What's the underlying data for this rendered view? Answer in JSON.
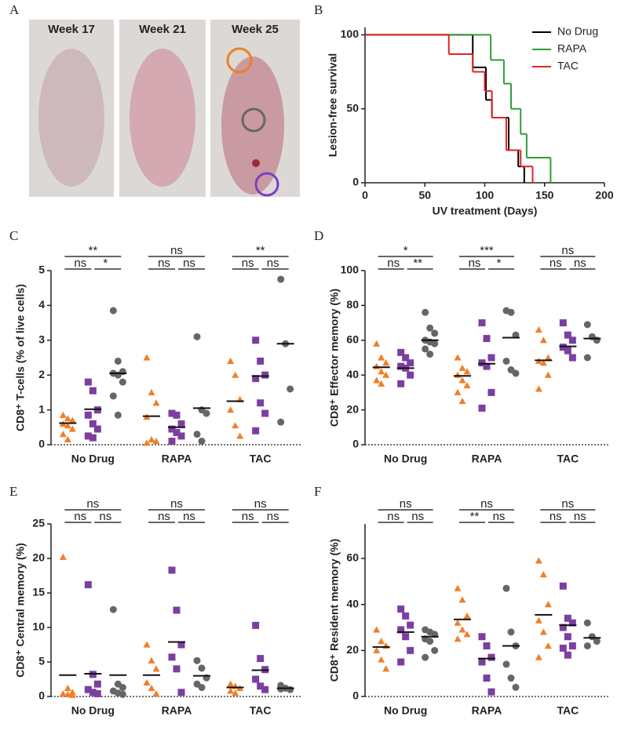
{
  "panel_a": {
    "label": "A",
    "captions": [
      "Week 17",
      "Week 21",
      "Week 25"
    ]
  },
  "chart_data": [
    {
      "type": "step",
      "label": "B",
      "xlabel": "UV treatment  (Days)",
      "ylabel": "Lesion-free survival",
      "xlim": [
        0,
        200
      ],
      "xticks": [
        0,
        50,
        100,
        150,
        200
      ],
      "ylim": [
        0,
        105
      ],
      "yticks": [
        0,
        50,
        100
      ],
      "legend": "upper right",
      "series": [
        {
          "name": "No Drug",
          "color": "#000000",
          "x": [
            0,
            90,
            101,
            106,
            120,
            128,
            133
          ],
          "values": [
            100,
            78,
            56,
            44,
            22,
            11,
            0
          ]
        },
        {
          "name": "RAPA",
          "color": "#2e9e3a",
          "x": [
            0,
            105,
            116,
            122,
            130,
            135,
            155
          ],
          "values": [
            100,
            83,
            67,
            50,
            33,
            17,
            0
          ]
        },
        {
          "name": "TAC",
          "color": "#e02424",
          "x": [
            0,
            70,
            90,
            100,
            106,
            118,
            130,
            140
          ],
          "values": [
            100,
            87,
            75,
            62,
            44,
            22,
            11,
            0
          ]
        }
      ]
    },
    {
      "type": "dot",
      "label": "C",
      "ylabel": "CD8⁺ T-cells (% of live cells)",
      "ylim": [
        0,
        5
      ],
      "yticks": [
        0,
        1,
        2,
        3,
        4,
        5
      ],
      "categories": [
        "No Drug",
        "RAPA",
        "TAC"
      ],
      "brackets": [
        [
          "ns",
          "*",
          "**"
        ],
        [
          "ns",
          "ns",
          "ns"
        ],
        [
          "ns",
          "ns",
          "**"
        ]
      ],
      "series": [
        {
          "color": "#f07f2a",
          "marker": "triangle",
          "points": [
            [
              0.85,
              0.75,
              0.7,
              0.6,
              0.55,
              0.45,
              0.3,
              0.15
            ],
            [
              2.5,
              1.5,
              1.2,
              0.8,
              0.15,
              0.1,
              0.05
            ],
            [
              2.4,
              2.0,
              1.3,
              1.0,
              0.55,
              0.25
            ]
          ],
          "means": [
            0.62,
            0.82,
            1.25
          ]
        },
        {
          "color": "#7b3fa0",
          "marker": "square",
          "points": [
            [
              1.8,
              1.55,
              1.0,
              0.85,
              0.6,
              0.45,
              0.25,
              0.2
            ],
            [
              0.9,
              0.85,
              0.6,
              0.45,
              0.35,
              0.25,
              0.1
            ],
            [
              3.0,
              2.4,
              2.0,
              1.9,
              1.2,
              0.9,
              0.4
            ]
          ],
          "means": [
            1.02,
            0.5,
            1.97
          ]
        },
        {
          "color": "#666666",
          "marker": "circle",
          "points": [
            [
              3.85,
              2.4,
              2.1,
              2.05,
              2.0,
              1.8,
              1.4,
              0.85
            ],
            [
              3.1,
              1.0,
              0.9,
              0.3,
              0.1
            ],
            [
              4.75,
              2.9,
              1.6,
              0.65
            ]
          ],
          "means": [
            2.05,
            1.05,
            2.9
          ]
        }
      ]
    },
    {
      "type": "dot",
      "label": "D",
      "ylabel": "CD8⁺ Effector memory (%)",
      "ylim": [
        0,
        100
      ],
      "yticks": [
        0,
        20,
        40,
        60,
        80,
        100
      ],
      "categories": [
        "No Drug",
        "RAPA",
        "TAC"
      ],
      "brackets": [
        [
          "ns",
          "**",
          "*"
        ],
        [
          "ns",
          "*",
          "***"
        ],
        [
          "ns",
          "ns",
          "ns"
        ]
      ],
      "series": [
        {
          "color": "#f07f2a",
          "marker": "triangle",
          "points": [
            [
              58,
              50,
              47,
              45,
              42,
              40,
              37,
              35
            ],
            [
              50,
              44,
              42,
              40,
              37,
              34,
              30,
              25
            ],
            [
              66,
              60,
              50,
              48,
              47,
              40,
              32
            ]
          ],
          "means": [
            44.5,
            39.5,
            48.5
          ]
        },
        {
          "color": "#7b3fa0",
          "marker": "square",
          "points": [
            [
              53,
              50,
              47,
              45,
              44,
              40,
              35
            ],
            [
              70,
              61,
              50,
              47,
              45,
              30,
              21
            ],
            [
              70,
              63,
              60,
              56,
              54,
              50
            ]
          ],
          "means": [
            44,
            46.5,
            56.5
          ]
        },
        {
          "color": "#666666",
          "marker": "circle",
          "points": [
            [
              76,
              67,
              64,
              60,
              59,
              58,
              55,
              52
            ],
            [
              77,
              76,
              63,
              48,
              43,
              41
            ],
            [
              69,
              62,
              60,
              50
            ]
          ],
          "means": [
            60,
            61.5,
            61
          ]
        }
      ]
    },
    {
      "type": "dot",
      "label": "E",
      "ylabel": "CD8⁺ Central memory (%)",
      "ylim": [
        0,
        25
      ],
      "yticks": [
        0,
        5,
        10,
        15,
        20,
        25
      ],
      "categories": [
        "No Drug",
        "RAPA",
        "TAC"
      ],
      "brackets": [
        [
          "ns",
          "ns",
          "ns"
        ],
        [
          "ns",
          "ns",
          "ns"
        ],
        [
          "ns",
          "ns",
          "ns"
        ]
      ],
      "series": [
        {
          "color": "#f07f2a",
          "marker": "triangle",
          "points": [
            [
              20.2,
              1.2,
              0.6,
              0.4,
              0.3,
              0.2
            ],
            [
              7.5,
              5.2,
              4.0,
              2.0,
              1.2,
              0.4
            ],
            [
              1.8,
              1.5,
              1.2,
              0.8,
              0.5
            ]
          ],
          "means": [
            3.1,
            3.1,
            1.3
          ]
        },
        {
          "color": "#7b3fa0",
          "marker": "square",
          "points": [
            [
              16.2,
              3.2,
              1.8,
              1.0,
              0.6,
              0.4
            ],
            [
              18.3,
              12.5,
              7.5,
              5.7,
              4.0,
              0.6
            ],
            [
              10.3,
              5.5,
              3.9,
              2.5,
              1.5,
              1.0
            ]
          ],
          "means": [
            3.3,
            7.9,
            3.8
          ]
        },
        {
          "color": "#666666",
          "marker": "circle",
          "points": [
            [
              12.6,
              1.8,
              1.3,
              0.8,
              0.5,
              0.3
            ],
            [
              5.2,
              4.1,
              2.7,
              1.8,
              1.3
            ],
            [
              1.6,
              1.2,
              1.0,
              1.1
            ]
          ],
          "means": [
            3.1,
            3.0,
            1.2
          ]
        }
      ]
    },
    {
      "type": "dot",
      "label": "F",
      "ylabel": "CD8⁺ Resident memory (%)",
      "ylim": [
        0,
        75
      ],
      "yticks": [
        0,
        20,
        40,
        60
      ],
      "categories": [
        "No Drug",
        "RAPA",
        "TAC"
      ],
      "brackets": [
        [
          "ns",
          "ns",
          "ns"
        ],
        [
          "**",
          "ns",
          "ns"
        ],
        [
          "ns",
          "ns",
          "ns"
        ]
      ],
      "series": [
        {
          "color": "#f07f2a",
          "marker": "triangle",
          "points": [
            [
              29,
              24,
              22,
              20,
              16,
              12
            ],
            [
              47,
              42,
              35,
              32,
              29,
              27,
              25
            ],
            [
              59,
              53,
              40,
              33,
              28,
              22,
              17
            ]
          ],
          "means": [
            21.5,
            33.5,
            35.5
          ]
        },
        {
          "color": "#7b3fa0",
          "marker": "square",
          "points": [
            [
              38,
              35,
              31,
              29,
              26,
              20,
              15
            ],
            [
              26,
              22,
              17,
              15,
              8,
              2
            ],
            [
              48,
              34,
              32,
              30,
              26,
              22,
              21,
              18
            ]
          ],
          "means": [
            28,
            16.5,
            31
          ]
        },
        {
          "color": "#666666",
          "marker": "circle",
          "points": [
            [
              29,
              28,
              27,
              25,
              24,
              20,
              17
            ],
            [
              47,
              28,
              22,
              14,
              8,
              4
            ],
            [
              32,
              26,
              24,
              22
            ]
          ],
          "means": [
            26,
            22,
            25.5
          ]
        }
      ]
    }
  ]
}
